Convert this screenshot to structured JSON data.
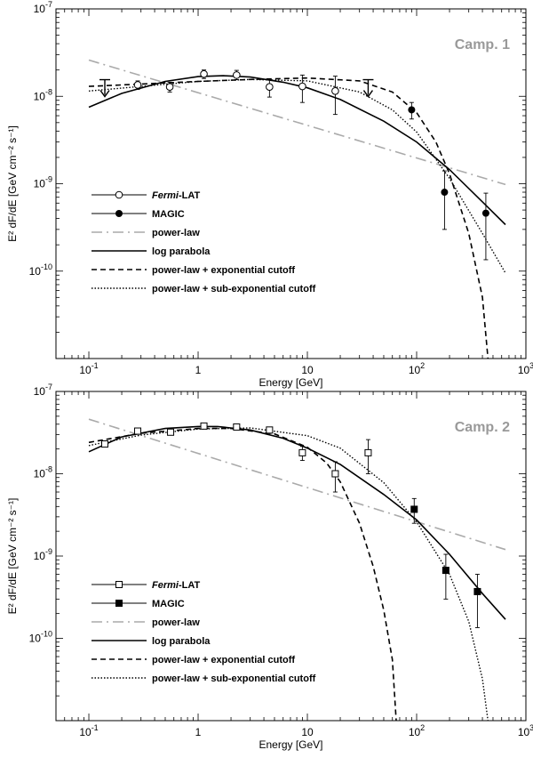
{
  "chart_data": [
    {
      "type": "line",
      "title": "",
      "annotation": "Camp. 1",
      "xlabel": "Energy [GeV]",
      "ylabel": "E² dF/dE [GeV cm⁻² s⁻¹]",
      "xscale": "log",
      "yscale": "log",
      "xlim": [
        0.05,
        1000
      ],
      "ylim": [
        1e-11,
        1e-07
      ],
      "x_tick_labels": [
        "10⁻¹",
        "1",
        "10",
        "10²",
        "10³"
      ],
      "y_tick_labels": [
        "10⁻⁷",
        "10⁻⁸",
        "10⁻⁹",
        "10⁻¹⁰"
      ],
      "legend_position": "lower-left",
      "legend": [
        {
          "label_em": "Fermi",
          "label": "-LAT",
          "style": "open-circle"
        },
        {
          "label_em": "",
          "label": "MAGIC",
          "style": "filled-circle"
        },
        {
          "label_em": "",
          "label": "power-law",
          "style": "dash-dot"
        },
        {
          "label_em": "",
          "label": "log parabola",
          "style": "solid"
        },
        {
          "label_em": "",
          "label": "power-law + exponential cutoff",
          "style": "dashed"
        },
        {
          "label_em": "",
          "label": "power-law + sub-exponential cutoff",
          "style": "dotted"
        }
      ],
      "fermi_points": [
        {
          "x": 0.28,
          "y": 1.35e-08,
          "ylo": 1.2e-08,
          "yhi": 1.5e-08
        },
        {
          "x": 0.55,
          "y": 1.28e-08,
          "ylo": 1.12e-08,
          "yhi": 1.45e-08
        },
        {
          "x": 1.13,
          "y": 1.8e-08,
          "ylo": 1.6e-08,
          "yhi": 2e-08
        },
        {
          "x": 2.25,
          "y": 1.75e-08,
          "ylo": 1.55e-08,
          "yhi": 1.98e-08
        },
        {
          "x": 4.5,
          "y": 1.28e-08,
          "ylo": 9.8e-09,
          "yhi": 1.55e-08
        },
        {
          "x": 9.0,
          "y": 1.3e-08,
          "ylo": 8.5e-09,
          "yhi": 1.75e-08
        },
        {
          "x": 18.0,
          "y": 1.15e-08,
          "ylo": 6.2e-09,
          "yhi": 1.7e-08
        }
      ],
      "upper_limits": [
        {
          "x": 0.14,
          "y": 1.55e-08
        },
        {
          "x": 36.0,
          "y": 1.55e-08
        }
      ],
      "magic_points": [
        {
          "x": 90.0,
          "y": 7e-09,
          "ylo": 5.5e-09,
          "yhi": 8.5e-09
        },
        {
          "x": 180.0,
          "y": 8e-10,
          "ylo": 3e-10,
          "yhi": 1.4e-09
        },
        {
          "x": 430.0,
          "y": 4.6e-10,
          "ylo": 1.35e-10,
          "yhi": 7.8e-10
        }
      ],
      "series": [
        {
          "name": "power-law",
          "style": "dash-dot",
          "x": [
            0.1,
            650
          ],
          "y": [
            2.6e-08,
            9.8e-10
          ]
        },
        {
          "name": "log parabola",
          "style": "solid",
          "x": [
            0.1,
            0.2,
            0.5,
            1,
            1.7,
            3,
            6,
            10,
            20,
            50,
            100,
            200,
            400,
            650
          ],
          "y": [
            7.5e-09,
            1.08e-08,
            1.48e-08,
            1.68e-08,
            1.72e-08,
            1.66e-08,
            1.45e-08,
            1.25e-08,
            9.2e-09,
            5.2e-09,
            3e-09,
            1.45e-09,
            6.2e-10,
            3.4e-10
          ]
        },
        {
          "name": "power-law + exponential cutoff",
          "style": "dashed",
          "x": [
            0.1,
            0.3,
            1,
            3,
            10,
            30,
            60,
            100,
            150,
            200,
            300,
            400,
            450
          ],
          "y": [
            1.3e-08,
            1.38e-08,
            1.48e-08,
            1.56e-08,
            1.62e-08,
            1.5e-08,
            1.12e-08,
            6.5e-09,
            3e-09,
            1.3e-09,
            2.7e-10,
            5e-11,
            1e-11
          ]
        },
        {
          "name": "power-law + sub-exponential cutoff",
          "style": "dotted",
          "x": [
            0.1,
            0.3,
            1,
            3,
            10,
            30,
            60,
            100,
            200,
            400,
            650
          ],
          "y": [
            1.15e-08,
            1.3e-08,
            1.48e-08,
            1.56e-08,
            1.5e-08,
            1.12e-08,
            7e-09,
            3.9e-09,
            1.15e-09,
            2.7e-10,
            9.5e-11
          ]
        }
      ]
    },
    {
      "type": "line",
      "title": "",
      "annotation": "Camp. 2",
      "xlabel": "Energy [GeV]",
      "ylabel": "E² dF/dE [GeV cm⁻² s⁻¹]",
      "xscale": "log",
      "yscale": "log",
      "xlim": [
        0.05,
        1000
      ],
      "ylim": [
        1e-11,
        1e-07
      ],
      "x_tick_labels": [
        "10⁻¹",
        "1",
        "10",
        "10²",
        "10³"
      ],
      "y_tick_labels": [
        "10⁻⁷",
        "10⁻⁸",
        "10⁻⁹",
        "10⁻¹⁰"
      ],
      "legend_position": "lower-left",
      "legend": [
        {
          "label_em": "Fermi",
          "label": "-LAT",
          "style": "open-square"
        },
        {
          "label_em": "",
          "label": "MAGIC",
          "style": "filled-square"
        },
        {
          "label_em": "",
          "label": "power-law",
          "style": "dash-dot"
        },
        {
          "label_em": "",
          "label": "log parabola",
          "style": "solid"
        },
        {
          "label_em": "",
          "label": "power-law + exponential cutoff",
          "style": "dashed"
        },
        {
          "label_em": "",
          "label": "power-law + sub-exponential cutoff",
          "style": "dotted"
        }
      ],
      "fermi_points": [
        {
          "x": 0.14,
          "y": 2.3e-08,
          "ylo": 2.12e-08,
          "yhi": 2.48e-08
        },
        {
          "x": 0.28,
          "y": 3.3e-08,
          "ylo": 3.1e-08,
          "yhi": 3.5e-08
        },
        {
          "x": 0.56,
          "y": 3.2e-08,
          "ylo": 3e-08,
          "yhi": 3.4e-08
        },
        {
          "x": 1.13,
          "y": 3.8e-08,
          "ylo": 3.6e-08,
          "yhi": 4e-08
        },
        {
          "x": 2.25,
          "y": 3.7e-08,
          "ylo": 3.5e-08,
          "yhi": 3.9e-08
        },
        {
          "x": 4.5,
          "y": 3.4e-08,
          "ylo": 3.1e-08,
          "yhi": 3.7e-08
        },
        {
          "x": 9.0,
          "y": 1.8e-08,
          "ylo": 1.45e-08,
          "yhi": 2.15e-08
        },
        {
          "x": 18.0,
          "y": 1e-08,
          "ylo": 6e-09,
          "yhi": 1.4e-08
        },
        {
          "x": 36.0,
          "y": 1.8e-08,
          "ylo": 1e-08,
          "yhi": 2.6e-08
        }
      ],
      "upper_limits": [],
      "magic_points": [
        {
          "x": 95.0,
          "y": 3.7e-09,
          "ylo": 2.5e-09,
          "yhi": 5e-09
        },
        {
          "x": 185.0,
          "y": 6.7e-10,
          "ylo": 3e-10,
          "yhi": 1.05e-09
        },
        {
          "x": 360.0,
          "y": 3.7e-10,
          "ylo": 1.35e-10,
          "yhi": 6e-10
        }
      ],
      "series": [
        {
          "name": "power-law",
          "style": "dash-dot",
          "x": [
            0.1,
            650
          ],
          "y": [
            4.6e-08,
            1.2e-09
          ]
        },
        {
          "name": "log parabola",
          "style": "solid",
          "x": [
            0.1,
            0.2,
            0.5,
            1,
            1.5,
            3,
            6,
            10,
            20,
            50,
            100,
            200,
            400,
            650
          ],
          "y": [
            1.85e-08,
            2.8e-08,
            3.55e-08,
            3.75e-08,
            3.75e-08,
            3.4e-08,
            2.7e-08,
            2.05e-08,
            1.3e-08,
            5.6e-09,
            2.75e-09,
            1.05e-09,
            3.5e-10,
            1.7e-10
          ]
        },
        {
          "name": "power-law + exponential cutoff",
          "style": "dashed",
          "x": [
            0.1,
            0.3,
            1,
            2,
            5,
            10,
            15,
            20,
            30,
            40,
            50,
            60,
            65
          ],
          "y": [
            2.4e-08,
            3.1e-08,
            3.55e-08,
            3.55e-08,
            3.05e-08,
            2.1e-08,
            1.35e-08,
            8e-09,
            2.5e-09,
            7.5e-10,
            2.2e-10,
            5.5e-11,
            1e-11
          ]
        },
        {
          "name": "power-law + sub-exponential cutoff",
          "style": "dotted",
          "x": [
            0.1,
            0.3,
            1,
            3,
            10,
            20,
            50,
            100,
            200,
            300,
            400,
            450
          ],
          "y": [
            2.2e-08,
            2.95e-08,
            3.5e-08,
            3.6e-08,
            2.9e-08,
            2.05e-08,
            7.8e-09,
            2.6e-09,
            6e-10,
            1.6e-10,
            3.2e-11,
            1e-11
          ]
        }
      ]
    }
  ]
}
